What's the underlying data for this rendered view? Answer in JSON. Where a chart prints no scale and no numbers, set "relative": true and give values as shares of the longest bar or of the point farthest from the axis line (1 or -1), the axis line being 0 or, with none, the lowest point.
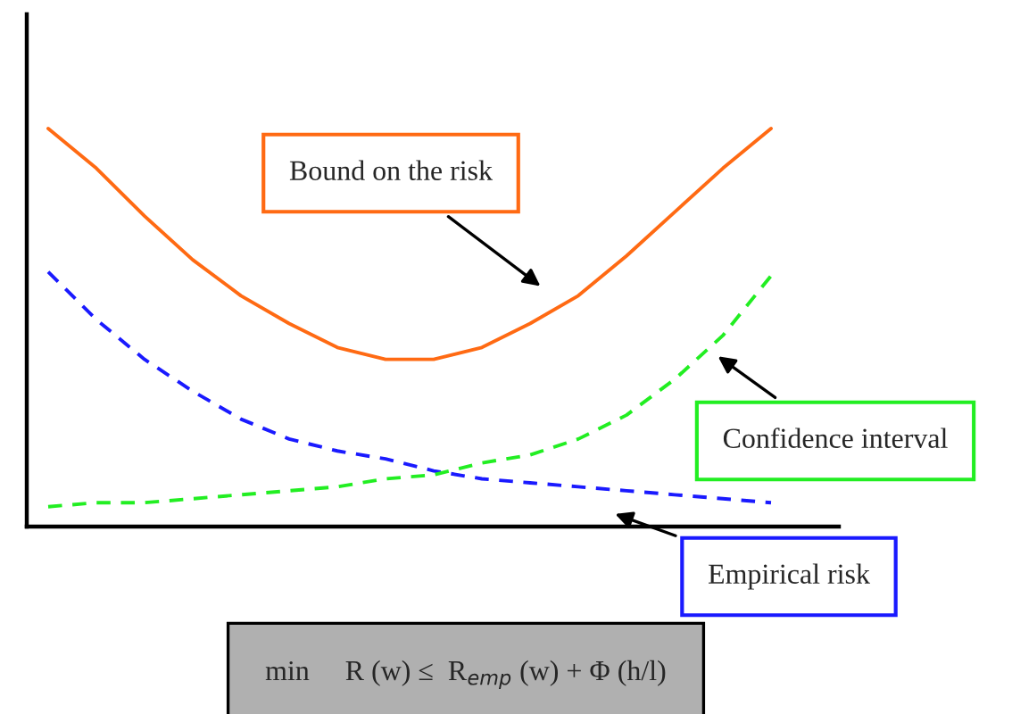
{
  "chart_data": {
    "type": "line",
    "relative": true,
    "legend": false,
    "grid": false,
    "marker": "none",
    "categories": [
      null,
      null,
      null,
      null,
      null,
      null,
      null,
      null,
      null,
      null,
      null,
      null,
      null,
      null,
      null,
      null
    ],
    "series": [
      {
        "color": "#ff6a13",
        "line_style": "solid",
        "values": [
          1.0,
          0.9,
          0.78,
          0.67,
          0.58,
          0.51,
          0.45,
          0.42,
          0.42,
          0.45,
          0.51,
          0.58,
          0.68,
          0.79,
          0.9,
          1.0
        ]
      },
      {
        "color": "#1a1aff",
        "line_style": "dashed",
        "values": [
          0.64,
          0.52,
          0.42,
          0.34,
          0.27,
          0.22,
          0.19,
          0.17,
          0.14,
          0.12,
          0.11,
          0.1,
          0.09,
          0.08,
          0.07,
          0.06
        ]
      },
      {
        "color": "#22ee22",
        "line_style": "dashed",
        "values": [
          0.05,
          0.06,
          0.06,
          0.07,
          0.08,
          0.09,
          0.1,
          0.12,
          0.13,
          0.16,
          0.18,
          0.22,
          0.28,
          0.37,
          0.48,
          0.63
        ]
      }
    ],
    "annotations": [
      "Bound on the risk",
      "Empirical risk",
      "Confidence interval",
      "min     R (w) ≤  R$_{emp}$ (w) + Φ (h/l)"
    ]
  }
}
